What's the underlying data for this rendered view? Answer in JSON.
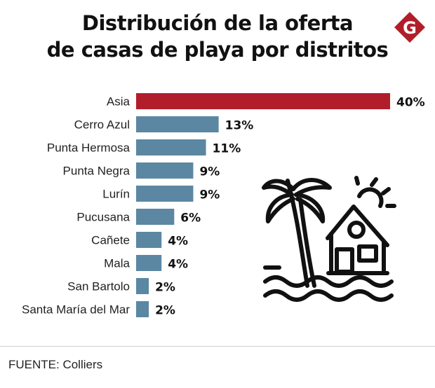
{
  "title_lines": [
    "Distribución de la oferta",
    "de casas de playa por distritos"
  ],
  "logo_letter": "G",
  "source": "FUENTE: Colliers",
  "colors": {
    "highlight": "#b11e2a",
    "bar": "#5b87a2",
    "logo": "#b11e2a"
  },
  "icons": [
    "brand-logo-icon",
    "beach-house-icon"
  ],
  "chart_data": {
    "type": "bar",
    "orientation": "horizontal",
    "categories": [
      "Asia",
      "Cerro Azul",
      "Punta Hermosa",
      "Punta Negra",
      "Lurín",
      "Pucusana",
      "Cañete",
      "Mala",
      "San Bartolo",
      "Santa María del Mar"
    ],
    "values": [
      40,
      13,
      11,
      9,
      9,
      6,
      4,
      4,
      2,
      2
    ],
    "value_labels": [
      "40%",
      "13%",
      "11%",
      "9%",
      "9%",
      "6%",
      "4%",
      "4%",
      "2%",
      "2%"
    ],
    "unit": "%",
    "xlim": [
      0,
      40
    ],
    "grid": false,
    "legend": "none"
  }
}
